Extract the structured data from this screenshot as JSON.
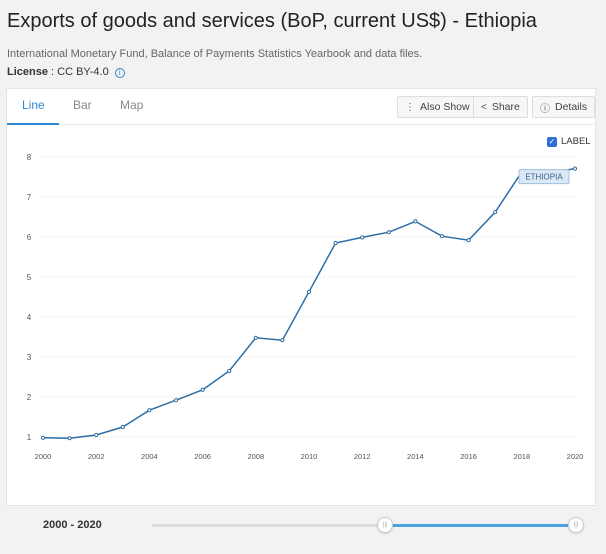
{
  "header": {
    "title": "Exports of goods and services (BoP, current US$) - Ethiopia",
    "source": "International Monetary Fund, Balance of Payments Statistics Yearbook and data files.",
    "license_label": "License",
    "license_value": ": CC BY-4.0"
  },
  "tabs": [
    {
      "label": "Line",
      "active": true
    },
    {
      "label": "Bar",
      "active": false
    },
    {
      "label": "Map",
      "active": false
    }
  ],
  "toolbar": {
    "also_show": "Also Show",
    "share": "Share",
    "details": "Details"
  },
  "label_toggle": {
    "text": "LABEL",
    "checked": true
  },
  "series_label": "ETHIOPIA",
  "slider": {
    "label": "2000 - 2020",
    "start_fraction": 0.55,
    "end_fraction": 1.0
  },
  "colors": {
    "line": "#2e6da4",
    "accent": "#2e86d4",
    "slider": "#4aa3df"
  },
  "chart_data": {
    "type": "line",
    "title": "",
    "xlabel": "",
    "ylabel": "",
    "ylim": [
      1,
      8
    ],
    "xlim": [
      2000,
      2020
    ],
    "yticks": [
      "1",
      "2",
      "3",
      "4",
      "5",
      "6",
      "7",
      "8"
    ],
    "xticks": [
      "2000",
      "2002",
      "2004",
      "2006",
      "2008",
      "2010",
      "2012",
      "2014",
      "2016",
      "2018",
      "2020"
    ],
    "grid": true,
    "series": [
      {
        "name": "ETHIOPIA",
        "x": [
          2000,
          2001,
          2002,
          2003,
          2004,
          2005,
          2006,
          2007,
          2008,
          2009,
          2010,
          2011,
          2012,
          2013,
          2014,
          2015,
          2016,
          2017,
          2018,
          2019,
          2020
        ],
        "values": [
          0.98,
          0.97,
          1.05,
          1.25,
          1.67,
          1.92,
          2.18,
          2.65,
          3.48,
          3.42,
          4.63,
          5.85,
          5.99,
          6.12,
          6.39,
          6.02,
          5.92,
          6.62,
          7.63,
          7.6,
          7.71
        ]
      }
    ]
  }
}
